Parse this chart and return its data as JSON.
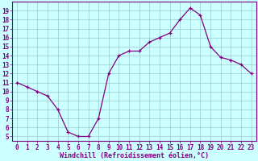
{
  "x_values": [
    0,
    1,
    2,
    3,
    4,
    5,
    6,
    7,
    8,
    9,
    10,
    11,
    12,
    13,
    14,
    15,
    16,
    17,
    18,
    19,
    20,
    21,
    22,
    23
  ],
  "y_values": [
    11,
    10.5,
    10,
    9.5,
    8,
    5.5,
    5,
    5,
    7,
    12,
    14,
    14.5,
    14.5,
    15.5,
    16,
    16.5,
    18,
    19.3,
    18.5,
    15,
    13.8,
    13.5,
    13,
    12
  ],
  "line_color": "#800080",
  "bg_color": "#ccffff",
  "grid_color": "#99cccc",
  "xlabel": "Windchill (Refroidissement éolien,°C)",
  "xlabel_color": "#800080",
  "ylabel_ticks": [
    5,
    6,
    7,
    8,
    9,
    10,
    11,
    12,
    13,
    14,
    15,
    16,
    17,
    18,
    19
  ],
  "xlim": [
    -0.5,
    23.5
  ],
  "ylim": [
    4.5,
    20.0
  ],
  "tick_fontsize": 5.5,
  "label_fontsize": 6.0
}
